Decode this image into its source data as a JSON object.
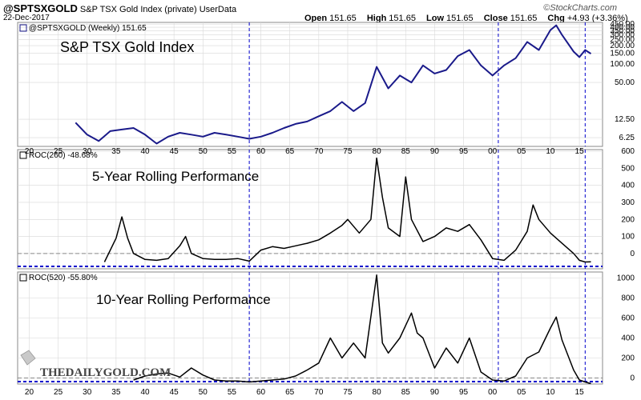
{
  "header": {
    "symbol": "@SPTSXGOLD",
    "description": "S&P TSX Gold Index (private)",
    "source": "UserData",
    "date": "22-Dec-2017",
    "brand": "©StockCharts.com",
    "open_label": "Open",
    "open": "151.65",
    "high_label": "High",
    "high": "151.65",
    "low_label": "Low",
    "low": "151.65",
    "close_label": "Close",
    "close": "151.65",
    "chg_label": "Chg",
    "chg": "+4.93 (+3.36%)"
  },
  "watermark": {
    "text": "THEDAILYGOLD.COM"
  },
  "colors": {
    "price_line": "#1a1a8a",
    "roc_line": "#000000",
    "marker_line": "#0000cc",
    "grid": "#d8d8d8"
  },
  "chart_data": [
    {
      "type": "line",
      "name": "price",
      "legend": "@SPTSXGOLD (Weekly) 151.65",
      "title": "S&P TSX Gold Index",
      "y_scale": "log",
      "ylim": [
        4.5,
        480
      ],
      "yticks": [
        "450.00",
        "400.00",
        "350.00",
        "300.00",
        "250.00",
        "200.00",
        "150.00",
        "100.00",
        "50.00",
        "12.50",
        "6.25"
      ],
      "ytick_values": [
        450,
        400,
        350,
        300,
        250,
        200,
        150,
        100,
        50,
        12.5,
        6.25
      ],
      "x": [
        1928,
        1930,
        1932,
        1934,
        1936,
        1938,
        1940,
        1942,
        1944,
        1946,
        1948,
        1950,
        1952,
        1954,
        1956,
        1958,
        1960,
        1962,
        1964,
        1966,
        1968,
        1970,
        1972,
        1974,
        1976,
        1978,
        1980,
        1982,
        1984,
        1986,
        1988,
        1990,
        1992,
        1994,
        1996,
        1998,
        2000,
        2002,
        2004,
        2006,
        2008,
        2010,
        2011,
        2012,
        2014,
        2015,
        2016,
        2017
      ],
      "values": [
        11,
        7,
        5.5,
        8,
        8.5,
        9,
        7,
        5,
        6.5,
        7.5,
        7,
        6.5,
        7.5,
        7,
        6.5,
        6,
        6.5,
        7.5,
        9,
        10.5,
        11.5,
        14,
        17,
        24,
        17,
        23,
        90,
        40,
        65,
        50,
        95,
        70,
        80,
        135,
        170,
        95,
        65,
        95,
        125,
        230,
        170,
        360,
        430,
        300,
        160,
        130,
        170,
        148
      ]
    },
    {
      "type": "line",
      "name": "roc260",
      "legend": "ROC(260) -48.68%",
      "title": "5-Year Rolling Performance",
      "ylim": [
        -90,
        610
      ],
      "yticks": [
        "600",
        "500",
        "400",
        "300",
        "200",
        "100",
        "0"
      ],
      "ytick_values": [
        600,
        500,
        400,
        300,
        200,
        100,
        0
      ],
      "x": [
        1933,
        1935,
        1936,
        1937,
        1938,
        1940,
        1942,
        1944,
        1946,
        1947,
        1948,
        1950,
        1952,
        1954,
        1956,
        1958,
        1960,
        1962,
        1964,
        1966,
        1968,
        1970,
        1972,
        1974,
        1975,
        1977,
        1979,
        1980,
        1981,
        1982,
        1984,
        1985,
        1986,
        1988,
        1990,
        1992,
        1994,
        1996,
        1998,
        2000,
        2002,
        2004,
        2006,
        2007,
        2008,
        2010,
        2012,
        2014,
        2015,
        2016,
        2017
      ],
      "values": [
        -50,
        90,
        215,
        90,
        0,
        -35,
        -40,
        -30,
        45,
        100,
        0,
        -30,
        -35,
        -35,
        -30,
        -45,
        20,
        40,
        30,
        45,
        60,
        80,
        120,
        165,
        200,
        120,
        200,
        560,
        330,
        150,
        100,
        450,
        200,
        70,
        100,
        150,
        130,
        170,
        80,
        -30,
        -40,
        20,
        130,
        285,
        200,
        120,
        60,
        0,
        -40,
        -50,
        -49
      ]
    },
    {
      "type": "line",
      "name": "roc520",
      "legend": "ROC(520) -55.80%",
      "title": "10-Year Rolling Performance",
      "ylim": [
        -60,
        1060
      ],
      "yticks": [
        "1000",
        "800",
        "600",
        "400",
        "200",
        "0"
      ],
      "ytick_values": [
        1000,
        800,
        600,
        400,
        200,
        0
      ],
      "x": [
        1938,
        1940,
        1942,
        1944,
        1946,
        1948,
        1950,
        1952,
        1954,
        1956,
        1958,
        1960,
        1962,
        1964,
        1966,
        1968,
        1970,
        1972,
        1974,
        1976,
        1978,
        1980,
        1981,
        1982,
        1984,
        1986,
        1987,
        1988,
        1990,
        1992,
        1994,
        1996,
        1998,
        2000,
        2002,
        2004,
        2006,
        2008,
        2010,
        2011,
        2012,
        2014,
        2015,
        2016,
        2017
      ],
      "values": [
        -20,
        20,
        40,
        50,
        10,
        100,
        30,
        -20,
        -30,
        -30,
        -40,
        -30,
        -20,
        -10,
        20,
        80,
        150,
        400,
        200,
        350,
        200,
        1030,
        350,
        250,
        400,
        650,
        450,
        400,
        100,
        300,
        150,
        400,
        60,
        -20,
        -30,
        20,
        200,
        260,
        500,
        610,
        380,
        80,
        -20,
        -40,
        -56
      ]
    }
  ],
  "x_axis": {
    "ticks": [
      "20",
      "25",
      "30",
      "35",
      "40",
      "45",
      "50",
      "55",
      "60",
      "65",
      "70",
      "75",
      "80",
      "85",
      "90",
      "95",
      "00",
      "05",
      "10",
      "15"
    ],
    "tick_years": [
      1920,
      1925,
      1930,
      1935,
      1940,
      1945,
      1950,
      1955,
      1960,
      1965,
      1970,
      1975,
      1980,
      1985,
      1990,
      1995,
      2000,
      2005,
      2010,
      2015
    ],
    "range": [
      1918,
      2019
    ],
    "markers": [
      1958,
      2001,
      2016
    ]
  }
}
